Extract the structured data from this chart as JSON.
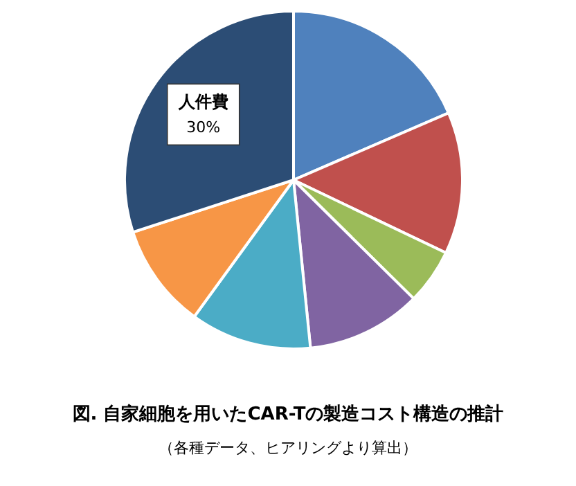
{
  "chart_data": {
    "type": "pie",
    "title": "図.  自家細胞を用いたCAR-Tの製造コスト構造の推計",
    "annotations": [
      "（各種データ、ヒアリングより算出）"
    ],
    "categories": [
      null,
      null,
      null,
      null,
      null,
      null,
      "人件費"
    ],
    "values": [
      18.5,
      13.6,
      5.3,
      11,
      11.6,
      10,
      30
    ],
    "value_labels": [
      null,
      null,
      null,
      null,
      null,
      null,
      "30%"
    ],
    "colors": [
      "#4f81bd",
      "#c0504d",
      "#9bbb59",
      "#8064a2",
      "#4bacc6",
      "#f79646",
      "#2c4d75"
    ]
  }
}
